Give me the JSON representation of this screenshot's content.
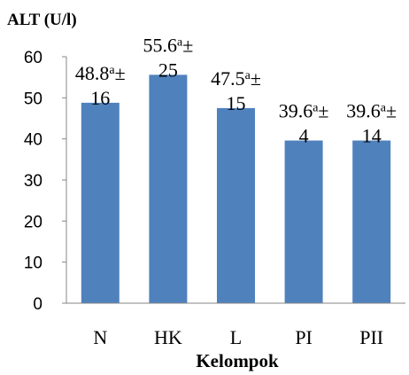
{
  "chart_data": {
    "type": "bar",
    "title": "",
    "ylabel": "ALT (U/l)",
    "xlabel": "Kelompok",
    "categories": [
      "N",
      "HK",
      "L",
      "PI",
      "PII"
    ],
    "values": [
      48.8,
      55.6,
      47.5,
      39.6,
      39.6
    ],
    "data_labels": [
      {
        "value": "48.8",
        "sup": "a",
        "pm": "±",
        "sd": "16"
      },
      {
        "value": "55.6",
        "sup": "a",
        "pm": "±",
        "sd": "25"
      },
      {
        "value": "47.5",
        "sup": "a",
        "pm": "±",
        "sd": "15"
      },
      {
        "value": "39.6",
        "sup": "a",
        "pm": "±",
        "sd": "4"
      },
      {
        "value": "39.6",
        "sup": "a",
        "pm": "±",
        "sd": "14"
      }
    ],
    "ylim": [
      0,
      60
    ],
    "yticks": [
      "0",
      "10",
      "20",
      "30",
      "40",
      "50",
      "60"
    ],
    "grid": false,
    "bar_color": "#4F81BD",
    "axis_color": "#868686"
  }
}
